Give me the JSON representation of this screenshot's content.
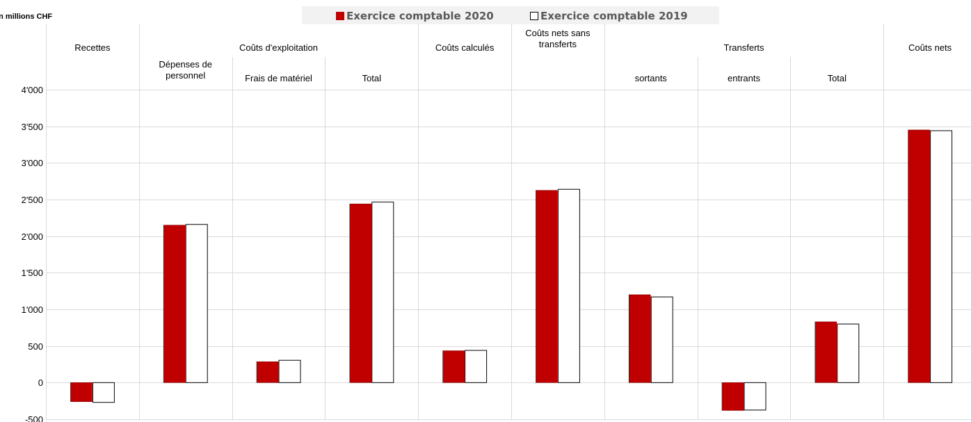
{
  "chart_data": {
    "type": "bar",
    "unit_label": "en millions CHF",
    "ylim": [
      -500,
      4000
    ],
    "yticks": [
      "-500",
      "0",
      "500",
      "1'000",
      "1'500",
      "2'000",
      "2'500",
      "3'000",
      "3'500",
      "4'000"
    ],
    "ytick_values": [
      -500,
      0,
      500,
      1000,
      1500,
      2000,
      2500,
      3000,
      3500,
      4000
    ],
    "legend_position": "top",
    "colors": {
      "series_2020": "#C00000",
      "series_2019": "#FFFFFF",
      "bar_outline": "#000000",
      "grid": "#D9D9D9",
      "legend_bg": "#F2F2F2"
    },
    "groups": [
      {
        "label": [
          "Recettes"
        ],
        "span": 1
      },
      {
        "label": [
          "Coûts d'exploitation"
        ],
        "span": 3
      },
      {
        "label": [
          "Coûts calculés"
        ],
        "span": 1
      },
      {
        "label": [
          "Coûts nets sans",
          "transferts"
        ],
        "span": 1
      },
      {
        "label": [
          "Transferts"
        ],
        "span": 3
      },
      {
        "label": [
          "Coûts nets"
        ],
        "span": 1
      }
    ],
    "categories": [
      [
        "Recettes"
      ],
      [
        "Dépenses de",
        "personnel"
      ],
      [
        "Frais de matériel"
      ],
      [
        "Total"
      ],
      [
        "Coûts calculés"
      ],
      [
        "Coûts nets sans",
        "transferts"
      ],
      [
        "sortants"
      ],
      [
        "entrants"
      ],
      [
        "Total"
      ],
      [
        "Coûts nets"
      ]
    ],
    "series": [
      {
        "name": "Exercice comptable 2020",
        "values": [
          -260,
          2150,
          285,
          2440,
          435,
          2625,
          1200,
          -380,
          830,
          3450
        ]
      },
      {
        "name": "Exercice comptable 2019",
        "values": [
          -270,
          2160,
          305,
          2465,
          440,
          2640,
          1170,
          -375,
          800,
          3440
        ]
      }
    ]
  }
}
